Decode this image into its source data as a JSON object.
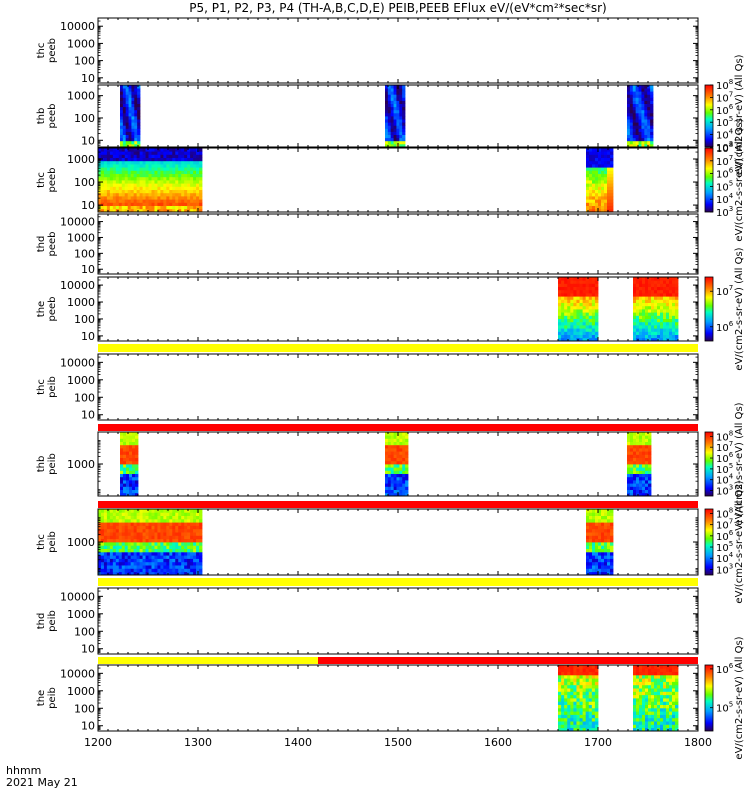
{
  "chart_data": {
    "type": "heatmap",
    "title": "P5, P1, P2, P3, P4 (TH-A,B,C,D,E) PEIB,PEEB EFlux eV/(eV*cm²*sec*sr)",
    "x_range": [
      1200,
      1800
    ],
    "x_ticks": [
      1200,
      1300,
      1400,
      1500,
      1600,
      1700,
      1800
    ],
    "x_tick_labels": [
      "1200",
      "1300",
      "1400",
      "1500",
      "1600",
      "1700",
      "1800"
    ],
    "x_label_time": "hhmm",
    "x_label_date": "2021 May 21",
    "panels": [
      {
        "id": "thc_peeb",
        "label": [
          "thc",
          "peeb"
        ],
        "ylim": [
          5,
          30000
        ],
        "yticks": [
          10,
          100,
          1000,
          10000
        ],
        "ytick_labels": [
          "10",
          "100",
          "1000",
          "10000"
        ],
        "blocks": [],
        "colorbar": null,
        "status_bar": null
      },
      {
        "id": "thb_peeb",
        "label": [
          "thb",
          "peeb"
        ],
        "ylim": [
          5,
          3000
        ],
        "yticks": [
          10,
          100,
          1000
        ],
        "ytick_labels": [
          "10",
          "100",
          "1000"
        ],
        "blocks": [
          {
            "t": [
              1222,
              1242
            ],
            "style": "blue"
          },
          {
            "t": [
              1487,
              1507
            ],
            "style": "blue"
          },
          {
            "t": [
              1729,
              1755
            ],
            "style": "blue"
          }
        ],
        "colorbar": {
          "range_exp": [
            3,
            8
          ],
          "tick_exps": [
            3,
            4,
            5,
            6,
            7,
            8
          ],
          "tick_labels": [
            "10",
            "10",
            "10",
            "10",
            "10",
            "10"
          ],
          "tick_sups": [
            "3",
            "4",
            "5",
            "6",
            "7",
            "8"
          ],
          "label": "eV/(cm2-s-sr-eV) (All Qs)"
        },
        "status_bar": null
      },
      {
        "id": "thc_peeb2",
        "label": [
          "thc",
          "peeb"
        ],
        "ylim": [
          5,
          3000
        ],
        "yticks": [
          10,
          100,
          1000
        ],
        "ytick_labels": [
          "10",
          "100",
          "1000"
        ],
        "blocks": [
          {
            "t": [
              1200,
              1304
            ],
            "style": "full"
          },
          {
            "t": [
              1688,
              1715
            ],
            "style": "mixed"
          }
        ],
        "colorbar": {
          "range_exp": [
            3,
            8
          ],
          "tick_exps": [
            3,
            4,
            5,
            6,
            7,
            8
          ],
          "tick_labels": [
            "10",
            "10",
            "10",
            "10",
            "10",
            "10"
          ],
          "tick_sups": [
            "3",
            "4",
            "5",
            "6",
            "7",
            "8"
          ],
          "label": "eV/(cm2-s-sr-eV) (All Qs)"
        },
        "status_bar": null
      },
      {
        "id": "thd_peeb",
        "label": [
          "thd",
          "peeb"
        ],
        "ylim": [
          5,
          30000
        ],
        "yticks": [
          10,
          100,
          1000,
          10000
        ],
        "ytick_labels": [
          "10",
          "100",
          "1000",
          "10000"
        ],
        "blocks": [],
        "colorbar": null,
        "status_bar": null
      },
      {
        "id": "the_peeb",
        "label": [
          "the",
          "peeb"
        ],
        "ylim": [
          5,
          30000
        ],
        "yticks": [
          10,
          100,
          1000,
          10000
        ],
        "ytick_labels": [
          "10",
          "100",
          "1000",
          "10000"
        ],
        "blocks": [
          {
            "t": [
              1660,
              1700
            ],
            "style": "hot"
          },
          {
            "t": [
              1735,
              1780
            ],
            "style": "hot"
          }
        ],
        "colorbar": {
          "range_exp": [
            5.6,
            7.4
          ],
          "tick_exps": [
            6,
            7
          ],
          "tick_labels": [
            "10",
            "10"
          ],
          "tick_sups": [
            "6",
            "7"
          ],
          "label": "eV/(cm2-s-sr-eV) (All Qs)"
        },
        "status_bar": [
          {
            "t": [
              1200,
              1800
            ],
            "color": "#ffff00"
          }
        ]
      },
      {
        "id": "thc_peib",
        "label": [
          "thc",
          "peib"
        ],
        "ylim": [
          5,
          30000
        ],
        "yticks": [
          10,
          100,
          1000,
          10000
        ],
        "ytick_labels": [
          "10",
          "100",
          "1000",
          "10000"
        ],
        "blocks": [],
        "colorbar": null,
        "status_bar": null
      },
      {
        "id": "thb_peib",
        "label": [
          "thb",
          "peib"
        ],
        "ylim": [
          50,
          20000
        ],
        "yticks": [
          1000
        ],
        "ytick_labels": [
          "1000"
        ],
        "blocks": [
          {
            "t": [
              1222,
              1240
            ],
            "style": "ion"
          },
          {
            "t": [
              1487,
              1510
            ],
            "style": "ion"
          },
          {
            "t": [
              1729,
              1753
            ],
            "style": "ion"
          }
        ],
        "colorbar": {
          "range_exp": [
            2.5,
            8.4
          ],
          "tick_exps": [
            3,
            4,
            5,
            6,
            7,
            8
          ],
          "tick_labels": [
            "10",
            "10",
            "10",
            "10",
            "10",
            "10"
          ],
          "tick_sups": [
            "3",
            "4",
            "5",
            "6",
            "7",
            "8"
          ],
          "label": "eV/(cm2-s-sr-eV) (All Qs)"
        },
        "status_bar": [
          {
            "t": [
              1200,
              1800
            ],
            "color": "#ff0000"
          }
        ]
      },
      {
        "id": "thc_peib2",
        "label": [
          "thc",
          "peib"
        ],
        "ylim": [
          50,
          20000
        ],
        "yticks": [
          1000
        ],
        "ytick_labels": [
          "1000"
        ],
        "blocks": [
          {
            "t": [
              1200,
              1304
            ],
            "style": "ion"
          },
          {
            "t": [
              1688,
              1715
            ],
            "style": "ion"
          }
        ],
        "colorbar": {
          "range_exp": [
            2.5,
            8.4
          ],
          "tick_exps": [
            3,
            4,
            5,
            6,
            7,
            8
          ],
          "tick_labels": [
            "10",
            "10",
            "10",
            "10",
            "10",
            "10"
          ],
          "tick_sups": [
            "3",
            "4",
            "5",
            "6",
            "7",
            "8"
          ],
          "label": "eV/(cm2-s-sr-eV) (All Qs)"
        },
        "status_bar": [
          {
            "t": [
              1200,
              1800
            ],
            "color": "#ff0000"
          }
        ]
      },
      {
        "id": "thd_peib",
        "label": [
          "thd",
          "peib"
        ],
        "ylim": [
          5,
          30000
        ],
        "yticks": [
          10,
          100,
          1000,
          10000
        ],
        "ytick_labels": [
          "10",
          "100",
          "1000",
          "10000"
        ],
        "blocks": [],
        "colorbar": null,
        "status_bar": [
          {
            "t": [
              1200,
              1800
            ],
            "color": "#ffff00"
          }
        ]
      },
      {
        "id": "the_peib",
        "label": [
          "the",
          "peib"
        ],
        "ylim": [
          5,
          30000
        ],
        "yticks": [
          10,
          100,
          1000,
          10000
        ],
        "ytick_labels": [
          "10",
          "100",
          "1000",
          "10000"
        ],
        "blocks": [
          {
            "t": [
              1660,
              1700
            ],
            "style": "ionlow"
          },
          {
            "t": [
              1735,
              1780
            ],
            "style": "ionlow"
          }
        ],
        "colorbar": {
          "range_exp": [
            4.4,
            6.1
          ],
          "tick_exps": [
            5,
            6
          ],
          "tick_labels": [
            "10",
            "10"
          ],
          "tick_sups": [
            "5",
            "6"
          ],
          "label": "eV/(cm2-s-sr-eV) (All Qs)"
        },
        "status_bar": [
          {
            "t": [
              1200,
              1420
            ],
            "color": "#ffff00"
          },
          {
            "t": [
              1420,
              1800
            ],
            "color": "#ff0000"
          }
        ]
      }
    ]
  }
}
